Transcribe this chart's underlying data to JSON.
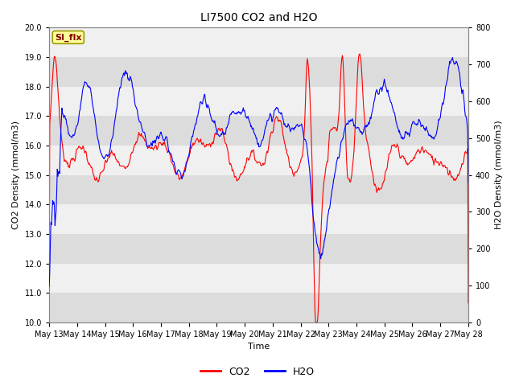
{
  "title": "LI7500 CO2 and H2O",
  "xlabel": "Time",
  "ylabel_left": "CO2 Density (mmol/m3)",
  "ylabel_right": "H2O Density (mmol/m3)",
  "ylim_left": [
    10.0,
    20.0
  ],
  "ylim_right": [
    0,
    800
  ],
  "yticks_left": [
    10.0,
    11.0,
    12.0,
    13.0,
    14.0,
    15.0,
    16.0,
    17.0,
    18.0,
    19.0,
    20.0
  ],
  "yticks_right": [
    0,
    100,
    200,
    300,
    400,
    500,
    600,
    700,
    800
  ],
  "xtick_labels": [
    "May 13",
    "May 14",
    "May 15",
    "May 16",
    "May 17",
    "May 18",
    "May 19",
    "May 20",
    "May 21",
    "May 22",
    "May 23",
    "May 24",
    "May 25",
    "May 26",
    "May 27",
    "May 28"
  ],
  "co2_color": "#FF0000",
  "h2o_color": "#0000FF",
  "bg_dark": "#DCDCDC",
  "bg_light": "#F0F0F0",
  "annotation_text": "SI_flx",
  "annotation_bbox_fc": "#FFFF99",
  "annotation_bbox_ec": "#999900",
  "annotation_color": "#880000",
  "legend_co2": "CO2",
  "legend_h2o": "H2O",
  "title_fontsize": 10,
  "axis_label_fontsize": 8,
  "tick_fontsize": 7,
  "line_width": 0.8
}
